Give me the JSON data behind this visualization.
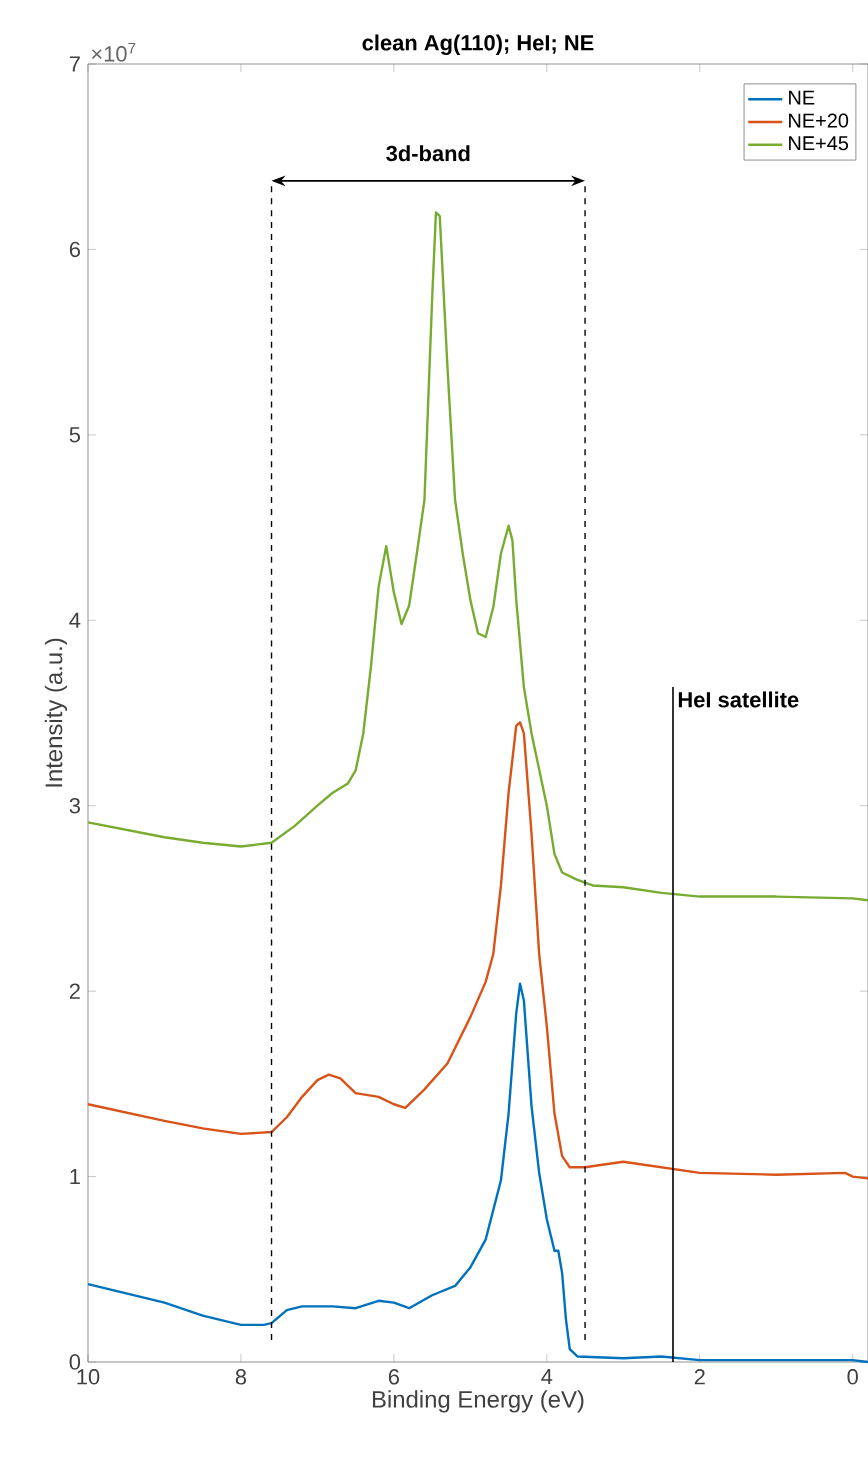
{
  "chart_data": {
    "type": "line",
    "title": "clean Ag(110); HeI; NE",
    "xlabel": "Binding Energy (eV)",
    "ylabel": "Intensity (a.u.)",
    "annotations": [
      "×10$^{7}$",
      "3d-band"
    ],
    "xlim": [
      10,
      -0.2
    ],
    "ylim": [
      0,
      7
    ],
    "xticks": [
      10,
      8,
      6,
      4,
      2,
      0
    ],
    "yticks": [
      0,
      1,
      2,
      3,
      4,
      5,
      6,
      7
    ],
    "grid": false,
    "legend": "top right",
    "line_style": "solid",
    "marker": "none",
    "ref_lines": [
      {
        "axis": "x",
        "value": 2.35,
        "label": "HeI satellite",
        "color": "#000000",
        "line_style": "solid"
      },
      {
        "axis": "x",
        "value": 7.6,
        "color": "#000000",
        "line_style": "dashed"
      },
      {
        "axis": "x",
        "value": 3.5,
        "color": "#000000",
        "line_style": "dashed"
      }
    ],
    "series": [
      {
        "name": "NE",
        "color": "#0072bd",
        "x": [
          10,
          9,
          8.5,
          8,
          7.7,
          7.6,
          7.4,
          7.2,
          6.8,
          6.5,
          6.2,
          6.0,
          5.8,
          5.5,
          5.2,
          5.0,
          4.8,
          4.6,
          4.5,
          4.4,
          4.35,
          4.3,
          4.2,
          4.1,
          4.0,
          3.9,
          3.85,
          3.8,
          3.75,
          3.7,
          3.6,
          3.0,
          2.5,
          2.0,
          1.0,
          0,
          -0.2
        ],
        "values": [
          0.42,
          0.32,
          0.25,
          0.2,
          0.2,
          0.21,
          0.28,
          0.3,
          0.3,
          0.29,
          0.33,
          0.32,
          0.29,
          0.36,
          0.41,
          0.51,
          0.66,
          0.98,
          1.34,
          1.88,
          2.04,
          1.95,
          1.38,
          1.02,
          0.77,
          0.6,
          0.6,
          0.48,
          0.23,
          0.07,
          0.03,
          0.02,
          0.03,
          0.01,
          0.01,
          0.01,
          0.0
        ]
      },
      {
        "name": "NE+20",
        "color": "#d95319",
        "x": [
          10,
          9,
          8.5,
          8,
          7.6,
          7.4,
          7.2,
          7.0,
          6.85,
          6.7,
          6.5,
          6.2,
          6.0,
          5.85,
          5.6,
          5.3,
          5.0,
          4.8,
          4.7,
          4.6,
          4.5,
          4.4,
          4.35,
          4.3,
          4.2,
          4.1,
          4.0,
          3.9,
          3.8,
          3.7,
          3.5,
          3.0,
          2.5,
          2.0,
          1.0,
          0.1,
          0,
          -0.2
        ],
        "values": [
          1.39,
          1.3,
          1.26,
          1.23,
          1.24,
          1.32,
          1.43,
          1.52,
          1.55,
          1.53,
          1.45,
          1.43,
          1.39,
          1.37,
          1.47,
          1.61,
          1.86,
          2.05,
          2.2,
          2.57,
          3.07,
          3.43,
          3.45,
          3.39,
          2.85,
          2.2,
          1.81,
          1.34,
          1.11,
          1.05,
          1.05,
          1.08,
          1.05,
          1.02,
          1.01,
          1.02,
          1.0,
          0.99
        ]
      },
      {
        "name": "NE+45",
        "color": "#77ac30",
        "x": [
          10,
          9,
          8.5,
          8,
          7.6,
          7.3,
          7.0,
          6.8,
          6.6,
          6.5,
          6.4,
          6.3,
          6.2,
          6.1,
          6.0,
          5.9,
          5.8,
          5.7,
          5.6,
          5.5,
          5.45,
          5.4,
          5.3,
          5.2,
          5.1,
          5.0,
          4.9,
          4.8,
          4.7,
          4.6,
          4.5,
          4.45,
          4.4,
          4.3,
          4.2,
          4.0,
          3.9,
          3.8,
          3.6,
          3.4,
          3.0,
          2.5,
          2.0,
          1.0,
          0,
          -0.2
        ],
        "values": [
          2.91,
          2.83,
          2.8,
          2.78,
          2.8,
          2.89,
          3.0,
          3.07,
          3.12,
          3.19,
          3.39,
          3.75,
          4.18,
          4.4,
          4.15,
          3.98,
          4.08,
          4.36,
          4.65,
          5.73,
          6.2,
          6.18,
          5.37,
          4.65,
          4.36,
          4.11,
          3.93,
          3.91,
          4.07,
          4.36,
          4.51,
          4.43,
          4.11,
          3.64,
          3.39,
          3.0,
          2.74,
          2.64,
          2.6,
          2.57,
          2.56,
          2.53,
          2.51,
          2.51,
          2.5,
          2.49
        ]
      }
    ]
  }
}
